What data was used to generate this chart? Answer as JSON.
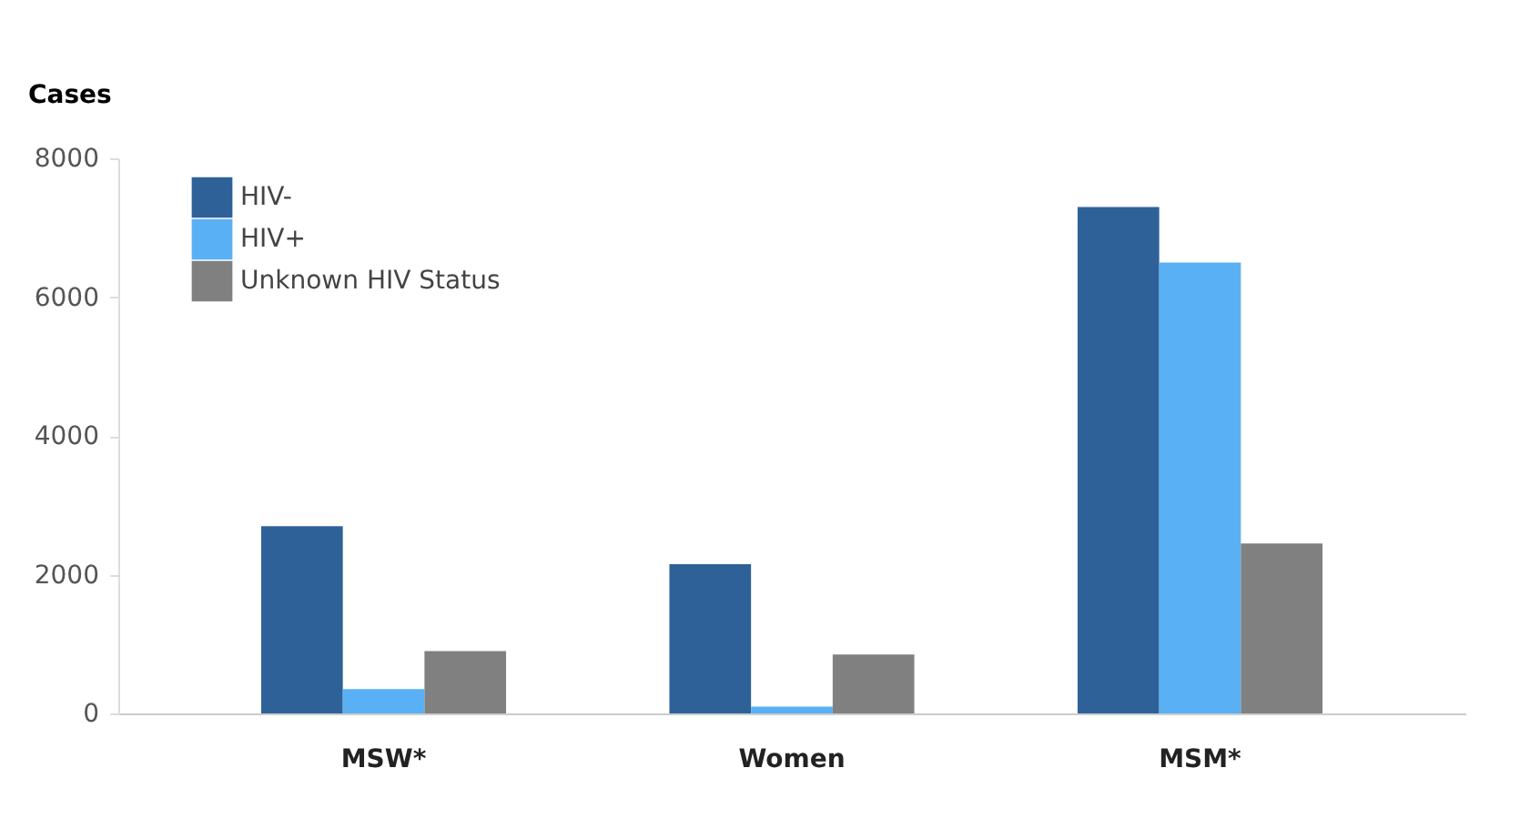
{
  "chart_data": {
    "type": "bar",
    "ylabel": "Cases",
    "categories": [
      "MSW*",
      "Women",
      "MSM*"
    ],
    "series": [
      {
        "name": "HIV-",
        "color": "#2f6199",
        "values": [
          2700,
          2150,
          7300
        ]
      },
      {
        "name": "HIV+",
        "color": "#5ab0f5",
        "values": [
          350,
          100,
          6500
        ]
      },
      {
        "name": "Unknown HIV Status",
        "color": "#808080",
        "values": [
          900,
          850,
          2450
        ]
      }
    ],
    "ylim": [
      0,
      8000
    ],
    "yticks": [
      0,
      2000,
      4000,
      6000,
      8000
    ],
    "grid": false,
    "legend": "top left"
  }
}
